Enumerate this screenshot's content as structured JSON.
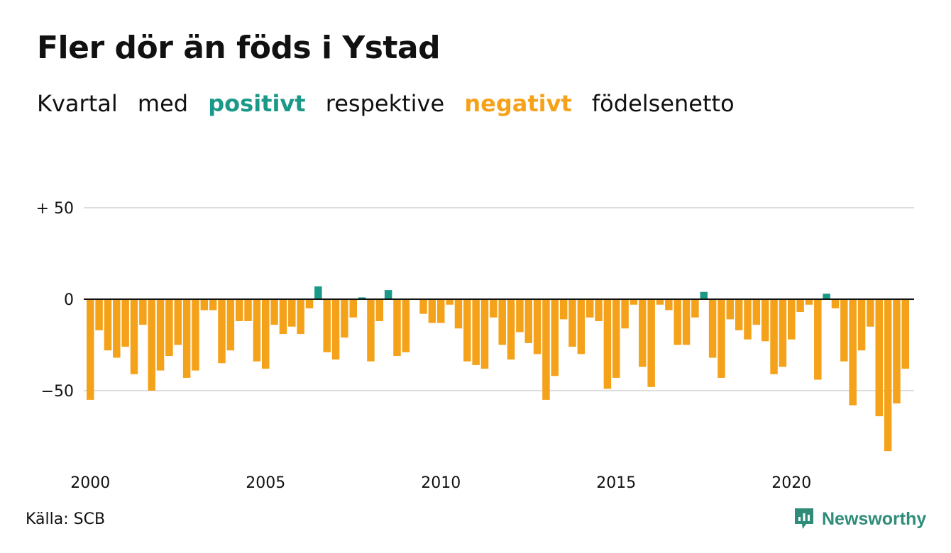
{
  "title": "Fler dör än föds i Ystad",
  "subtitle": {
    "part1": "Kvartal",
    "part2": "med",
    "positive": "positivt",
    "part3": "respektive",
    "negative": "negativt",
    "part4": "födelsenetto"
  },
  "source": "Källa: SCB",
  "brand": "Newsworthy",
  "colors": {
    "positive": "#1a9988",
    "negative": "#f5a21b",
    "grid": "#dddddd",
    "zero_line": "#111111",
    "brand": "#2e8c78"
  },
  "chart_data": {
    "type": "bar",
    "x_start": "2000 Q1",
    "xticks": [
      "2000",
      "2005",
      "2010",
      "2015",
      "2020"
    ],
    "yticks": [
      "+ 50",
      "0",
      "−50"
    ],
    "ytick_values": [
      50,
      0,
      -50
    ],
    "ylim": [
      -85,
      50
    ],
    "grid": true,
    "values": [
      -55,
      -17,
      -28,
      -32,
      -26,
      -41,
      -14,
      -50,
      -39,
      -31,
      -25,
      -43,
      -39,
      -6,
      -6,
      -35,
      -28,
      -12,
      -12,
      -34,
      -38,
      -14,
      -19,
      -15,
      -19,
      -5,
      7,
      -29,
      -33,
      -21,
      -10,
      1,
      -34,
      -12,
      5,
      -31,
      -29,
      0,
      -8,
      -13,
      -13,
      -3,
      -16,
      -34,
      -36,
      -38,
      -10,
      -25,
      -33,
      -18,
      -24,
      -30,
      -55,
      -42,
      -11,
      -26,
      -30,
      -10,
      -12,
      -49,
      -43,
      -16,
      -3,
      -37,
      -48,
      -3,
      -6,
      -25,
      -25,
      -10,
      4,
      -32,
      -43,
      -11,
      -17,
      -22,
      -14,
      -23,
      -41,
      -37,
      -22,
      -7,
      -3,
      -44,
      3,
      -5,
      -34,
      -58,
      -28,
      -15,
      -64,
      -83,
      -57,
      -38
    ]
  }
}
